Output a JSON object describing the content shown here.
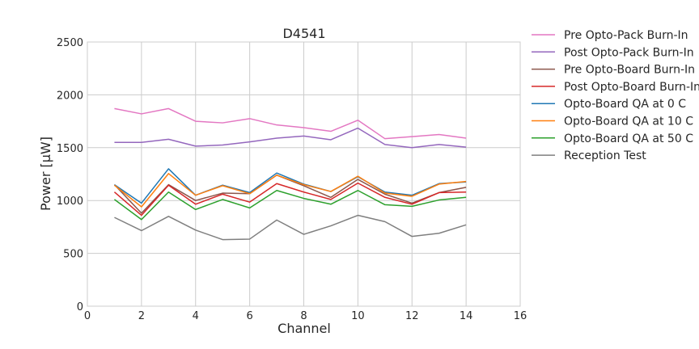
{
  "chart_data": {
    "type": "line",
    "title": "D4541",
    "xlabel": "Channel",
    "ylabel": "Power [μW]",
    "xlim": [
      0,
      16
    ],
    "ylim": [
      0,
      2500
    ],
    "xticks": [
      0,
      2,
      4,
      6,
      8,
      10,
      12,
      14,
      16
    ],
    "yticks": [
      0,
      500,
      1000,
      1500,
      2000,
      2500
    ],
    "grid": true,
    "legend_placement": "outside right, top",
    "x": [
      1,
      2,
      3,
      4,
      5,
      6,
      7,
      8,
      9,
      10,
      11,
      12,
      13,
      14
    ],
    "series": [
      {
        "name": "Pre Opto-Pack Burn-In",
        "color": "#e377c2",
        "values": [
          1870,
          1820,
          1870,
          1750,
          1735,
          1775,
          1715,
          1690,
          1655,
          1760,
          1585,
          1605,
          1625,
          1590
        ]
      },
      {
        "name": "Post Opto-Pack Burn-In",
        "color": "#9467bd",
        "values": [
          1550,
          1550,
          1580,
          1515,
          1525,
          1555,
          1590,
          1610,
          1575,
          1685,
          1530,
          1500,
          1530,
          1505
        ]
      },
      {
        "name": "Pre Opto-Board Burn-In",
        "color": "#8c564b",
        "values": [
          1150,
          880,
          1150,
          1000,
          1070,
          1065,
          1240,
          1140,
          1030,
          1200,
          1060,
          975,
          1075,
          1125
        ]
      },
      {
        "name": "Post Opto-Board Burn-In",
        "color": "#d62728",
        "values": [
          1080,
          860,
          1145,
          965,
          1060,
          985,
          1160,
          1080,
          1010,
          1165,
          1030,
          965,
          1075,
          1080
        ]
      },
      {
        "name": "Opto-Board QA at 0 C",
        "color": "#1f77b4",
        "values": [
          1150,
          975,
          1300,
          1050,
          1145,
          1075,
          1260,
          1155,
          1085,
          1225,
          1080,
          1050,
          1160,
          1175
        ]
      },
      {
        "name": "Opto-Board QA at 10 C",
        "color": "#ff7f0e",
        "values": [
          1145,
          940,
          1255,
          1050,
          1140,
          1065,
          1240,
          1150,
          1085,
          1230,
          1070,
          1040,
          1155,
          1180
        ]
      },
      {
        "name": "Opto-Board QA at 50 C",
        "color": "#2ca02c",
        "values": [
          1010,
          820,
          1080,
          915,
          1010,
          930,
          1095,
          1020,
          965,
          1095,
          960,
          945,
          1005,
          1030
        ]
      },
      {
        "name": "Reception Test",
        "color": "#7f7f7f",
        "values": [
          840,
          715,
          850,
          720,
          630,
          635,
          815,
          680,
          760,
          860,
          800,
          660,
          690,
          770
        ]
      }
    ]
  }
}
